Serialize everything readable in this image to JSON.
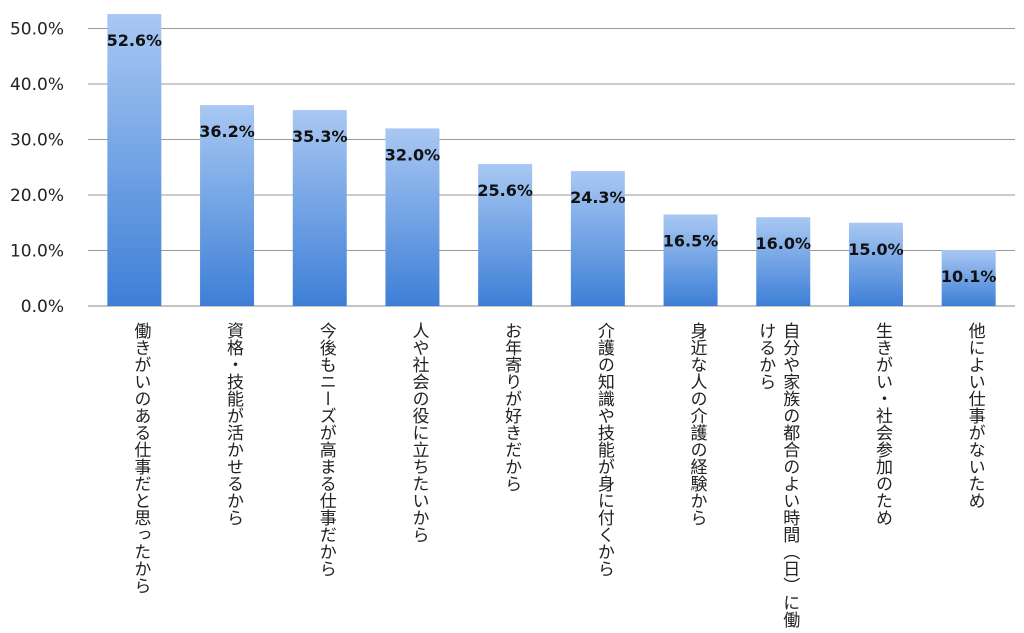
{
  "chart_data": {
    "type": "bar",
    "categories": [
      "働きがいのある仕事だと思ったから",
      "資格・技能が活かせるから",
      "今後もニーズが高まる仕事だから",
      "人や社会の役に立ちたいから",
      "お年寄りが好きだから",
      "介護の知識や技能が身に付くから",
      "身近な人の介護の経験から",
      "自分や家族の都合のよい時間（日）に働けるから",
      "生きがい・社会参加のため",
      "他によい仕事がないため"
    ],
    "values": [
      52.6,
      36.2,
      35.3,
      32.0,
      25.6,
      24.3,
      16.5,
      16.0,
      15.0,
      10.1
    ],
    "value_labels": [
      "52.6%",
      "36.2%",
      "35.3%",
      "32.0%",
      "25.6%",
      "24.3%",
      "16.5%",
      "16.0%",
      "15.0%",
      "10.1%"
    ],
    "yticks": [
      "0.0%",
      "10.0%",
      "20.0%",
      "30.0%",
      "40.0%",
      "50.0%"
    ],
    "ylim": [
      0,
      53
    ],
    "grid": true,
    "colors": {
      "bar_top": "#a9c8f3",
      "bar_bottom": "#3d7fd6",
      "grid": "#999999"
    }
  }
}
